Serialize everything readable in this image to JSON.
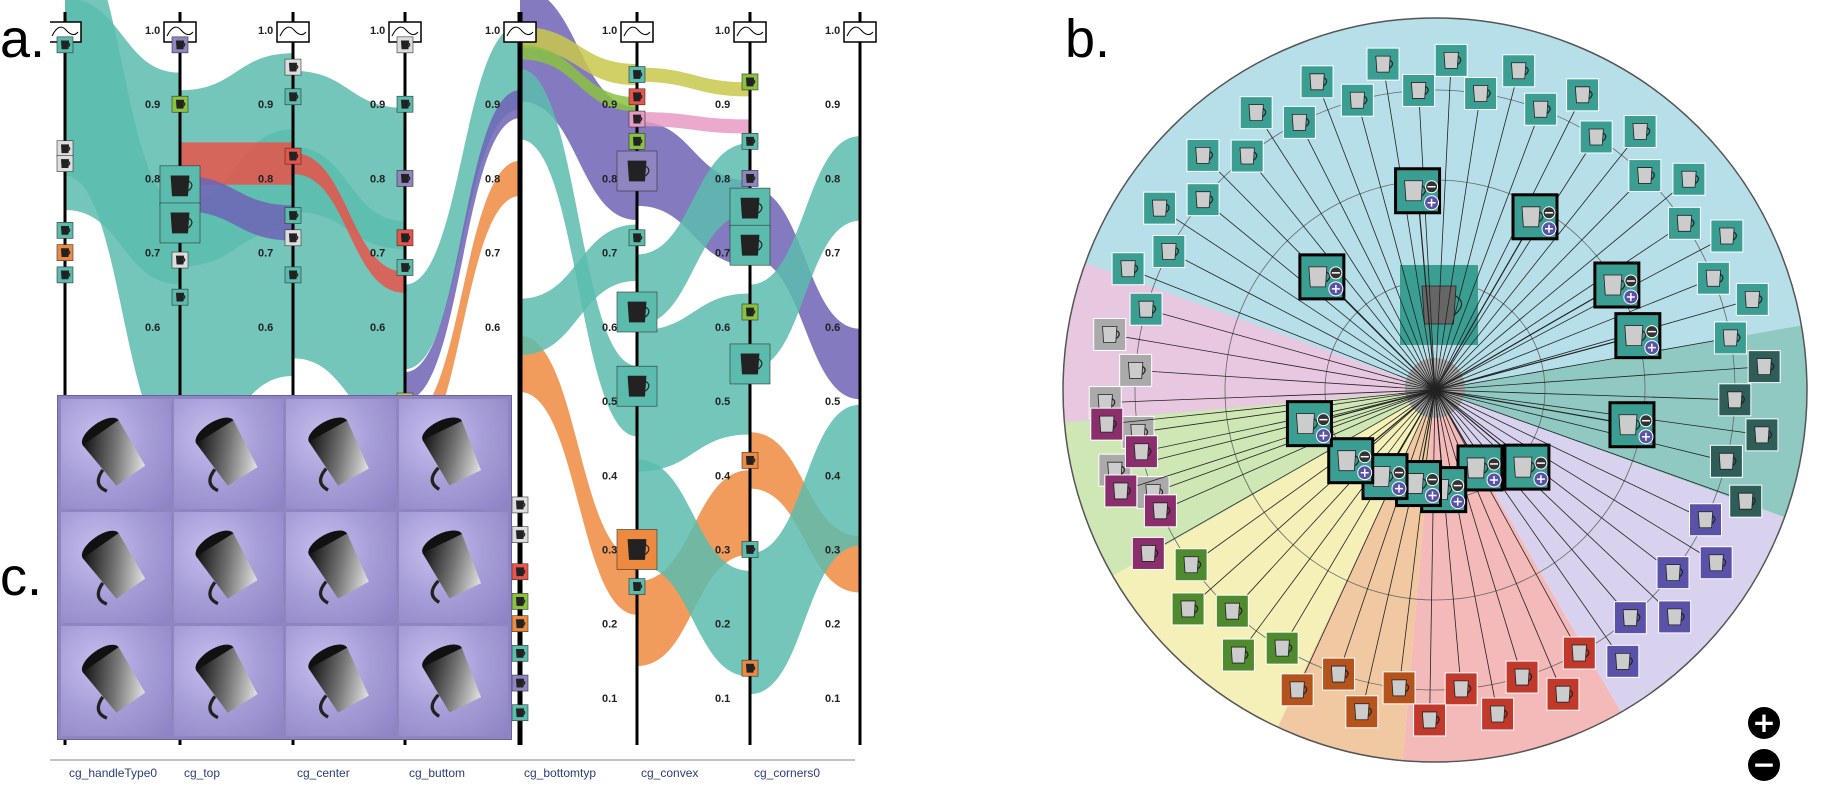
{
  "panels": {
    "a": "a.",
    "b": "b.",
    "c": "c."
  },
  "parallel_coordinates": {
    "axes": [
      {
        "label": "cg_handleType0",
        "show_ticks": false
      },
      {
        "label": "cg_top",
        "show_ticks": true
      },
      {
        "label": "cg_center",
        "show_ticks": true
      },
      {
        "label": "cg_buttom",
        "show_ticks": true
      },
      {
        "label": "cg_bottomtyp",
        "show_ticks": true
      },
      {
        "label": "cg_convex",
        "show_ticks": true
      },
      {
        "label": "cg_corners0",
        "show_ticks": true
      },
      {
        "label": "",
        "show_ticks": true
      }
    ],
    "tick_labels": [
      "1.0",
      "0.9",
      "0.8",
      "0.7",
      "0.6",
      "0.5",
      "0.4",
      "0.3",
      "0.2",
      "0.1"
    ],
    "colors": {
      "teal": "#5bbcad",
      "purple": "#6e63b5",
      "red": "#e8534a",
      "orange": "#ee8a3f",
      "green": "#8ac23f",
      "olive": "#c8c84b",
      "pink": "#e79ac2"
    }
  },
  "thumbnail_grid": {
    "rows": 3,
    "cols": 4,
    "background": "#8f85c0"
  },
  "radial_view": {
    "sector_colors": [
      "#b7dfe9",
      "#8fc9c1",
      "#f4f0b8",
      "#f0c9a3",
      "#cfe6b5",
      "#e8c8e1",
      "#f4b9b9",
      "#d8d2ee"
    ],
    "icons": [
      "mug-icon",
      "plus-icon",
      "minus-icon"
    ]
  },
  "controls": {
    "zoom_in": "+",
    "zoom_out": "−"
  }
}
